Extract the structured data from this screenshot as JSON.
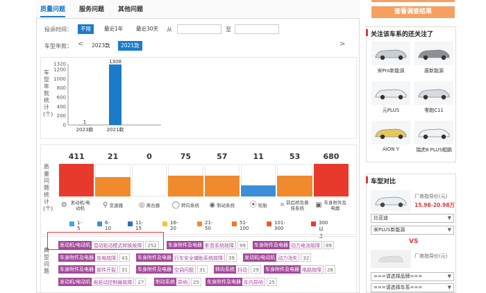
{
  "tabs": [
    {
      "label": "质量问题"
    },
    {
      "label": "服务问题"
    },
    {
      "label": "其他问题"
    }
  ],
  "filters": {
    "complaint_time_label": "投诉时间：",
    "time_options": [
      "不限",
      "最近1年",
      "最近30天"
    ],
    "from_label": "从",
    "to_label": "至",
    "model_year_label": "车型年款：",
    "year_options": [
      "2023款",
      "2021款"
    ]
  },
  "year_chart_label": "车型年款统计(个)",
  "chart_data": {
    "type": "bar",
    "categories": [
      "2023款",
      "2021款"
    ],
    "values": [
      1,
      1308
    ],
    "yticks": [
      0,
      200,
      400,
      600,
      800,
      1000,
      1200,
      1320
    ],
    "ylim": [
      0,
      1320
    ],
    "ylabel": "车型年款统计(个)",
    "xlabel": "",
    "title": "",
    "grid": false
  },
  "quality_stats": {
    "side_label": "质量问题统计(个)",
    "categories": [
      {
        "label": "发动机/电动机",
        "icon": "engine-icon",
        "count": "411",
        "color": "#e83a2c"
      },
      {
        "label": "变速器",
        "icon": "gearshift-icon",
        "count": "21",
        "color": "#f08a2c"
      },
      {
        "label": "离合器",
        "icon": "clutch-icon",
        "count": "0",
        "color": "#ffffff"
      },
      {
        "label": "转向系统",
        "icon": "steering-icon",
        "count": "75",
        "color": "#f08a2c"
      },
      {
        "label": "制动系统",
        "icon": "brake-icon",
        "count": "57",
        "color": "#f08a2c"
      },
      {
        "label": "轮胎",
        "icon": "tire-icon",
        "count": "11",
        "color": "#3b8fd8"
      },
      {
        "label": "前后桥及悬挂系统",
        "icon": "suspension-icon",
        "count": "53",
        "color": "#f08a2c"
      },
      {
        "label": "车身附件及电器",
        "icon": "body-electric-icon",
        "count": "680",
        "color": "#e83a2c"
      }
    ],
    "legend": [
      {
        "label": "1-5",
        "color": "#3ba7e0"
      },
      {
        "label": "6-10",
        "color": "#3b8fd8"
      },
      {
        "label": "11-15",
        "color": "#2b6fb8"
      },
      {
        "label": "16-20",
        "color": "#f5c23a"
      },
      {
        "label": "21-50",
        "color": "#f08a2c"
      },
      {
        "label": "51-100",
        "color": "#ef7a22"
      },
      {
        "label": "101-300",
        "color": "#e85a2c"
      },
      {
        "label": "300以上",
        "color": "#e83a2c"
      }
    ]
  },
  "problem_section": {
    "side_label": "典型问题",
    "tags": [
      {
        "cat": "发动机/电动机",
        "name": "混动驱动模式转换故障",
        "n": "252"
      },
      {
        "cat": "车身附件及电器",
        "name": "影音系统故障",
        "n": "99"
      },
      {
        "cat": "车身附件及电器",
        "name": "动力电池故障",
        "n": "89"
      },
      {
        "cat": "车身附件及电器",
        "name": "充电故障",
        "n": "43"
      },
      {
        "cat": "车身附件及电器",
        "name": "行车安全辅助系统故障",
        "n": "39"
      },
      {
        "cat": "发动机/电动机",
        "name": "动力消失",
        "n": "32"
      },
      {
        "cat": "车身附件及电器",
        "name": "部件开裂",
        "n": "31"
      },
      {
        "cat": "车身附件及电器",
        "name": "空调问题",
        "n": "31"
      },
      {
        "cat": "转向系统",
        "name": "抖动",
        "n": "29"
      },
      {
        "cat": "车身附件及电器",
        "name": "电路故障",
        "n": "28"
      },
      {
        "cat": "发动机/电动机",
        "name": "电驱动控制器故障",
        "n": "27"
      },
      {
        "cat": "制动系统",
        "name": "异响",
        "n": "25"
      },
      {
        "cat": "车身附件及电器",
        "name": "车内异响",
        "n": "25"
      }
    ]
  },
  "sidebar": {
    "view_button": "查看调查结果",
    "also_followed_title": "关注该车系的还关注了",
    "cars": [
      {
        "name": "宋Pro新能源"
      },
      {
        "name": "唐新能源"
      },
      {
        "name": "元PLUS"
      },
      {
        "name": "零跑C11"
      },
      {
        "name": "AION Y"
      },
      {
        "name": "瑞虎8 PLUS鲲鹏"
      }
    ],
    "compare_title": "车型对比",
    "guide_price_label": "厂商指导价(元)",
    "guide_price_value": "15.98-20.98万",
    "brand_select": "比亚迪",
    "model_select": "宋PLUS新能源",
    "vs": "VS",
    "guide_price_label2": "厂商指导价(元)",
    "brand_placeholder": "===请选择品牌===",
    "model_placeholder": "===请选择车系==="
  }
}
